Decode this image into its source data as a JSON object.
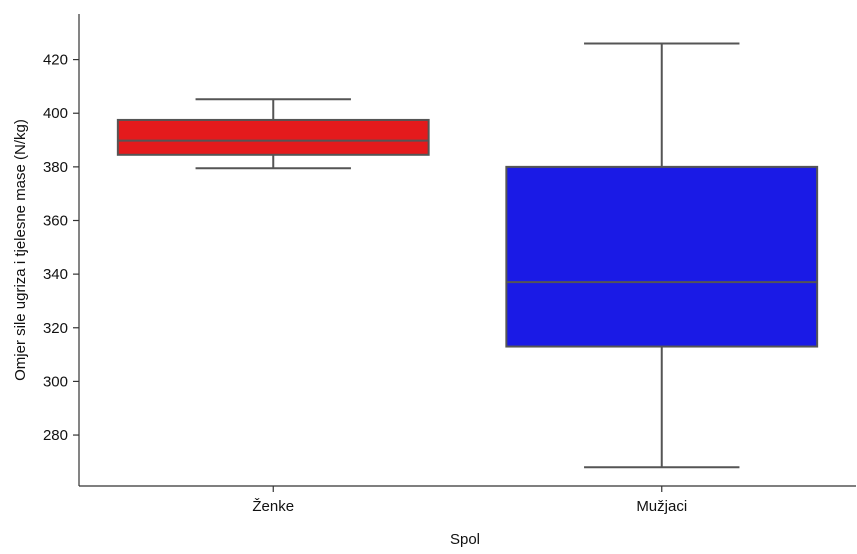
{
  "chart_data": {
    "type": "box",
    "title": "",
    "xlabel": "Spol",
    "ylabel": "Omjer sile ugriza i tjelesne mase (N/kg)",
    "ylim": [
      261,
      437
    ],
    "yticks": [
      280,
      300,
      320,
      340,
      360,
      380,
      400,
      420
    ],
    "categories": [
      "Ženke",
      "Mužjaci"
    ],
    "boxes": [
      {
        "category": "Ženke",
        "color": "#e41a1c",
        "whisker_low": 379.5,
        "q1": 384.5,
        "median": 389.8,
        "q3": 397.5,
        "whisker_high": 405.2
      },
      {
        "category": "Mužjaci",
        "color": "#1a1ae6",
        "whisker_low": 268,
        "q1": 313,
        "median": 337,
        "q3": 380,
        "whisker_high": 426
      }
    ],
    "grid": false,
    "legend": "none"
  }
}
